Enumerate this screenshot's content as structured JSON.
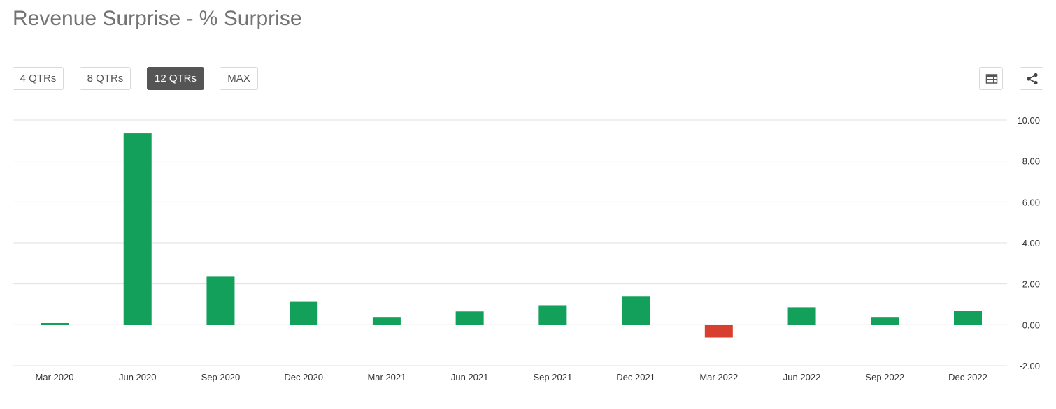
{
  "page_title": "Revenue Surprise - % Surprise",
  "range_buttons": [
    {
      "label": "4 QTRs",
      "active": false
    },
    {
      "label": "8 QTRs",
      "active": false
    },
    {
      "label": "12 QTRs",
      "active": true
    },
    {
      "label": "MAX",
      "active": false
    }
  ],
  "toolbar_icons": [
    "table-icon",
    "share-icon"
  ],
  "chart_data": {
    "type": "bar",
    "title": "",
    "xlabel": "",
    "ylabel": "",
    "categories": [
      "Mar 2020",
      "Jun 2020",
      "Sep 2020",
      "Dec 2020",
      "Mar 2021",
      "Jun 2021",
      "Sep 2021",
      "Dec 2021",
      "Mar 2022",
      "Jun 2022",
      "Sep 2022",
      "Dec 2022"
    ],
    "values": [
      0.08,
      9.35,
      2.35,
      1.15,
      0.38,
      0.65,
      0.95,
      1.4,
      -0.62,
      0.85,
      0.38,
      0.68
    ],
    "ylim": [
      -2,
      10
    ],
    "yticks": [
      "10.00",
      "8.00",
      "6.00",
      "4.00",
      "2.00",
      "0.00",
      "-2.00"
    ],
    "grid": true,
    "colors": {
      "positive": "#13a05a",
      "negative": "#d93f30",
      "grid": "#e0e0e0"
    }
  }
}
